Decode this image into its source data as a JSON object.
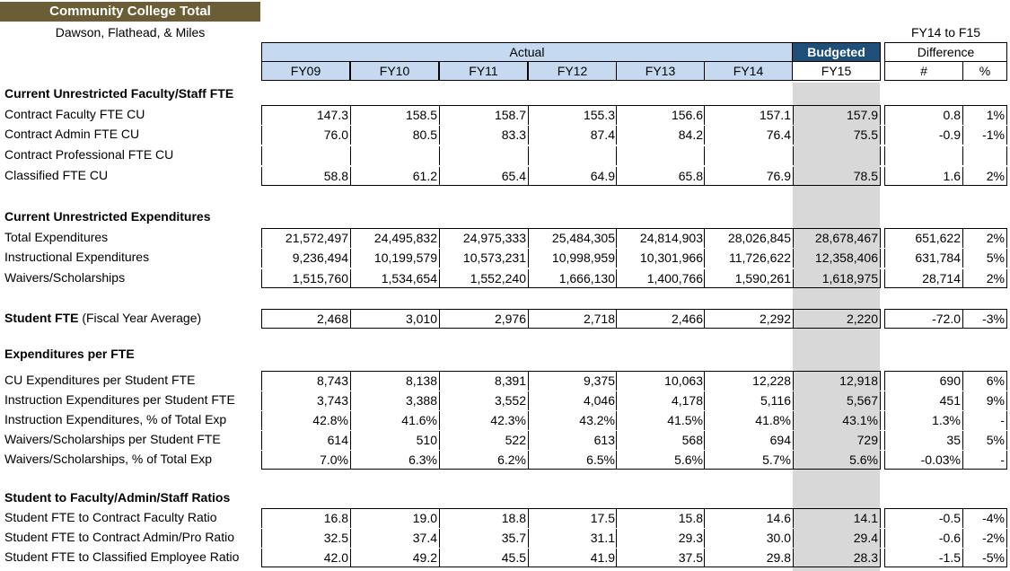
{
  "title": "Community College Total",
  "subtitle": "Dawson, Flathead, & Miles",
  "header": {
    "actual": "Actual",
    "budgeted": "Budgeted",
    "years": [
      "FY09",
      "FY10",
      "FY11",
      "FY12",
      "FY13",
      "FY14"
    ],
    "budget_year": "FY15",
    "diff_title": "FY14 to F15",
    "difference": "Difference",
    "num": "#",
    "pct": "%"
  },
  "sections": [
    {
      "title": "Current Unrestricted Faculty/Staff FTE",
      "rows": [
        {
          "label": "Contract Faculty FTE CU",
          "values": [
            "147.3",
            "158.5",
            "158.7",
            "155.3",
            "156.6",
            "157.1",
            "157.9"
          ],
          "diff": "0.8",
          "pct": "1%"
        },
        {
          "label": "Contract Admin FTE CU",
          "values": [
            "76.0",
            "80.5",
            "83.3",
            "87.4",
            "84.2",
            "76.4",
            "75.5"
          ],
          "diff": "-0.9",
          "pct": "-1%"
        },
        {
          "label": "Contract Professional FTE CU",
          "values": [
            "",
            "",
            "",
            "",
            "",
            "",
            ""
          ],
          "diff": "",
          "pct": ""
        },
        {
          "label": "Classified FTE CU",
          "values": [
            "58.8",
            "61.2",
            "65.4",
            "64.9",
            "65.8",
            "76.9",
            "78.5"
          ],
          "diff": "1.6",
          "pct": "2%"
        }
      ]
    },
    {
      "title": "Current Unrestricted Expenditures",
      "rows": [
        {
          "label": "Total Expenditures",
          "values": [
            "21,572,497",
            "24,495,832",
            "24,975,333",
            "25,484,305",
            "24,814,903",
            "28,026,845",
            "28,678,467"
          ],
          "diff": "651,622",
          "pct": "2%"
        },
        {
          "label": "Instructional Expenditures",
          "values": [
            "9,236,494",
            "10,199,579",
            "10,573,231",
            "10,998,959",
            "10,301,966",
            "11,726,622",
            "12,358,406"
          ],
          "diff": "631,784",
          "pct": "5%"
        },
        {
          "label": "Waivers/Scholarships",
          "values": [
            "1,515,760",
            "1,534,654",
            "1,552,240",
            "1,666,130",
            "1,400,766",
            "1,590,261",
            "1,618,975"
          ],
          "diff": "28,714",
          "pct": "2%"
        }
      ]
    },
    {
      "title": "",
      "rows": [
        {
          "label_bold": "Student FTE",
          "label": " (Fiscal Year Average)",
          "values": [
            "2,468",
            "3,010",
            "2,976",
            "2,718",
            "2,466",
            "2,292",
            "2,220"
          ],
          "diff": "-72.0",
          "pct": "-3%"
        }
      ]
    },
    {
      "title": "Expenditures per FTE",
      "rows": [
        {
          "label": "CU Expenditures per Student FTE",
          "values": [
            "8,743",
            "8,138",
            "8,391",
            "9,375",
            "10,063",
            "12,228",
            "12,918"
          ],
          "diff": "690",
          "pct": "6%"
        },
        {
          "label": "Instruction Expenditures per Student FTE",
          "values": [
            "3,743",
            "3,388",
            "3,552",
            "4,046",
            "4,178",
            "5,116",
            "5,567"
          ],
          "diff": "451",
          "pct": "9%"
        },
        {
          "label": "Instruction Expenditures, % of Total Exp",
          "values": [
            "42.8%",
            "41.6%",
            "42.3%",
            "43.2%",
            "41.5%",
            "41.8%",
            "43.1%"
          ],
          "diff": "1.3%",
          "pct": "-"
        },
        {
          "label": "Waivers/Scholarships per Student FTE",
          "values": [
            "614",
            "510",
            "522",
            "613",
            "568",
            "694",
            "729"
          ],
          "diff": "35",
          "pct": "5%"
        },
        {
          "label": "Waivers/Scholarships, % of Total Exp",
          "values": [
            "7.0%",
            "6.3%",
            "6.2%",
            "6.5%",
            "5.6%",
            "5.7%",
            "5.6%"
          ],
          "diff": "-0.03%",
          "pct": "-"
        }
      ]
    },
    {
      "title": "Student to Faculty/Admin/Staff Ratios",
      "rows": [
        {
          "label": "Student FTE to Contract Faculty Ratio",
          "values": [
            "16.8",
            "19.0",
            "18.8",
            "17.5",
            "15.8",
            "14.6",
            "14.1"
          ],
          "diff": "-0.5",
          "pct": "-4%"
        },
        {
          "label": "Student FTE to Contract Admin/Pro Ratio",
          "values": [
            "32.5",
            "37.4",
            "35.7",
            "31.1",
            "29.3",
            "30.0",
            "29.4"
          ],
          "diff": "-0.6",
          "pct": "-2%"
        },
        {
          "label": "Student FTE to Classified Employee Ratio",
          "values": [
            "42.0",
            "49.2",
            "45.5",
            "41.9",
            "37.5",
            "29.8",
            "28.3"
          ],
          "diff": "-1.5",
          "pct": "-5%"
        }
      ]
    }
  ]
}
